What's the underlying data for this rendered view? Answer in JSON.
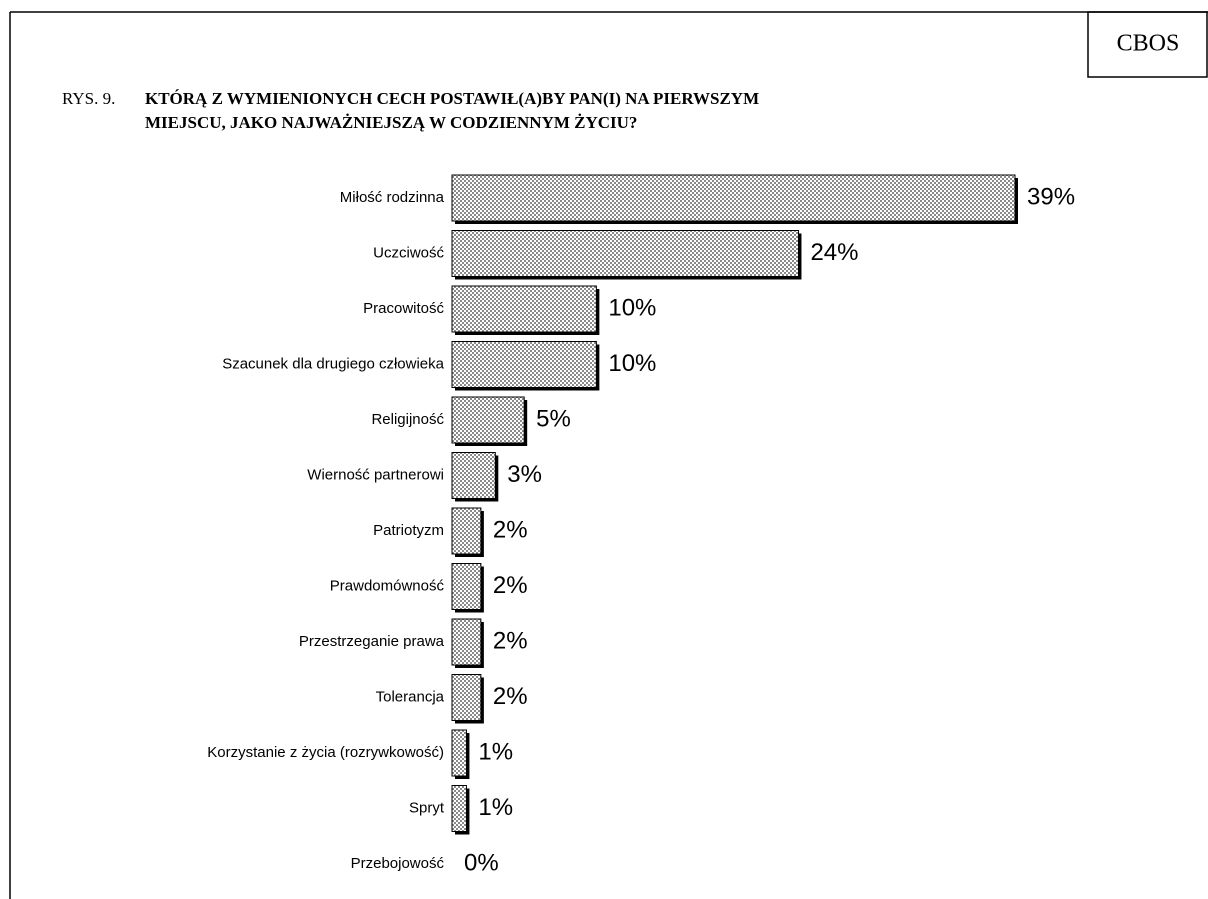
{
  "chart_data": {
    "type": "bar",
    "orientation": "horizontal",
    "source": "CBOS",
    "figure_label": "RYS. 9.",
    "title": [
      "KTÓRĄ Z WYMIENIONYCH CECH POSTAWIŁ(A)BY PAN(I) NA PIERWSZYM",
      "MIEJSCU, JAKO NAJWAŻNIEJSZĄ  W CODZIENNYM ŻYCIU?"
    ],
    "categories": [
      "Miłość rodzinna",
      "Uczciwość",
      "Pracowitość",
      "Szacunek dla drugiego człowieka",
      "Religijność",
      "Wierność partnerowi",
      "Patriotyzm",
      "Prawdomówność",
      "Przestrzeganie prawa",
      "Tolerancja",
      "Korzystanie z życia (rozrywkowość)",
      "Spryt",
      "Przebojowość"
    ],
    "values": [
      39,
      24,
      10,
      10,
      5,
      3,
      2,
      2,
      2,
      2,
      1,
      1,
      0
    ],
    "value_labels": [
      "39%",
      "24%",
      "10%",
      "10%",
      "5%",
      "3%",
      "2%",
      "2%",
      "2%",
      "2%",
      "1%",
      "1%",
      "0%"
    ],
    "color": "#d8d8d8"
  }
}
